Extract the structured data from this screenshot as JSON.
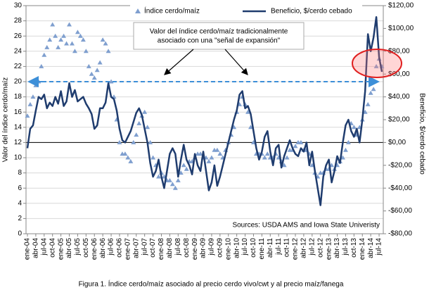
{
  "chart_data": {
    "type": "combo",
    "legend_position": "top",
    "ylabel": "Valor del índice cerdo/maíz",
    "y2label": "Beneficio, $/cerdo cebado",
    "annotation": [
      "Valor del índice cerdo/maíz tradicionalmente",
      "asociado con una \"señal de expansión\""
    ],
    "reference_line": 20,
    "source": "Sources: USDA AMS and Iowa State Univeristy",
    "caption": "Figura 1. Índice cerdo/maíz asociado al precio cerdo vivo/cwt y al precio maíz/fanega",
    "categories": [
      "ene-04",
      null,
      null,
      "abr-04",
      null,
      null,
      "jul-04",
      null,
      null,
      "oct-04",
      null,
      null,
      "ene-05",
      null,
      null,
      "abr-05",
      null,
      null,
      "jul-05",
      null,
      null,
      "oct-05",
      null,
      null,
      "ene-06",
      null,
      null,
      "abr-06",
      null,
      null,
      "jul-06",
      null,
      null,
      "oct-06",
      null,
      null,
      "ene-07",
      null,
      null,
      "abr-07",
      null,
      null,
      "jul-07",
      null,
      null,
      "oct-07",
      null,
      null,
      "ene-08",
      null,
      null,
      "abr-08",
      null,
      null,
      "jul-08",
      null,
      null,
      "oct-08",
      null,
      null,
      "ene-09",
      null,
      null,
      "abr-09",
      null,
      null,
      "jul-09",
      null,
      null,
      "oct-09",
      null,
      null,
      "ene-10",
      null,
      null,
      "abr-10",
      null,
      null,
      "jul-10",
      null,
      null,
      "oct-10",
      null,
      null,
      "ene-11",
      null,
      null,
      "abr-11",
      null,
      null,
      "jul-11",
      null,
      null,
      "oct-11",
      null,
      null,
      "ene-12",
      null,
      null,
      "abr-12",
      null,
      null,
      "jul-12",
      null,
      null,
      "oct-12",
      null,
      null,
      "ene-13",
      null,
      null,
      "abr-13",
      null,
      null,
      "jul-13",
      null,
      null,
      "oct-13",
      null,
      null,
      "ene-14",
      null,
      null,
      "abr-14",
      null,
      null,
      "jul-14",
      null
    ],
    "series": [
      {
        "name": "Índice cerdo/maíz",
        "kind": "scatter",
        "color": "#7f9fcf",
        "values": [
          15.5,
          17,
          18,
          19.5,
          20,
          22,
          23.5,
          24.5,
          25.5,
          27.5,
          26,
          24.5,
          25.5,
          26,
          25,
          27.5,
          25,
          24,
          26.5,
          26,
          25.5,
          24,
          22,
          21,
          20.5,
          21.5,
          22.5,
          25.5,
          25,
          24,
          20,
          18,
          15,
          12,
          10.5,
          10.5,
          10,
          9.5,
          12,
          13,
          14.5,
          15.5,
          16,
          14,
          12,
          10,
          9,
          7.5,
          8,
          7.5,
          7,
          7,
          6.5,
          6,
          7,
          8,
          9,
          8.5,
          9.5,
          9.5,
          10,
          10.5,
          10.5,
          10,
          10,
          9.5,
          10,
          11,
          11,
          10.5,
          10,
          11,
          12,
          13,
          14,
          16,
          17,
          18,
          17,
          16,
          14,
          12,
          10.5,
          10.5,
          10.5,
          10,
          10.5,
          10,
          10,
          10.5,
          10,
          9.5,
          9,
          10,
          11,
          11,
          11.5,
          12,
          12,
          11,
          11,
          10.5,
          9,
          8,
          7.5,
          8,
          8,
          8.5,
          8.5,
          9,
          8.5,
          9,
          9.5,
          10,
          11,
          12,
          14.5,
          14,
          13,
          14,
          15,
          16,
          17,
          18.5,
          19,
          22,
          23,
          22
        ]
      },
      {
        "name": "Beneficio, $/cerdo cebado",
        "kind": "line",
        "axis": "y2",
        "color": "#1f3c6e",
        "values": [
          -5,
          12,
          15,
          28,
          40,
          38,
          42,
          30,
          35,
          32,
          40,
          34,
          45,
          32,
          36,
          52,
          40,
          46,
          36,
          38,
          40,
          34,
          30,
          25,
          12,
          15,
          30,
          30,
          35,
          52,
          40,
          38,
          28,
          12,
          2,
          0,
          5,
          10,
          18,
          26,
          30,
          24,
          12,
          0,
          -18,
          -30,
          -25,
          -15,
          -30,
          -40,
          -25,
          -10,
          -5,
          -10,
          -30,
          -15,
          -2,
          -15,
          -20,
          -28,
          -10,
          -20,
          -25,
          -8,
          -25,
          -42,
          -35,
          -20,
          -38,
          -30,
          -20,
          -10,
          0,
          10,
          20,
          28,
          42,
          45,
          30,
          32,
          25,
          10,
          -5,
          -15,
          -8,
          5,
          10,
          -8,
          -20,
          -5,
          -2,
          -22,
          -12,
          -5,
          2,
          -5,
          -10,
          -12,
          -5,
          -8,
          0,
          -20,
          -8,
          -25,
          -40,
          -55,
          -30,
          -20,
          -15,
          -35,
          -25,
          -12,
          -18,
          0,
          15,
          20,
          10,
          5,
          12,
          0,
          20,
          45,
          95,
          80,
          92,
          110,
          75,
          62
        ]
      }
    ],
    "ylim": [
      0,
      30
    ],
    "yticks": [
      0,
      2,
      4,
      6,
      8,
      10,
      12,
      14,
      16,
      18,
      20,
      22,
      24,
      26,
      28,
      30
    ],
    "y2lim": [
      -80,
      120
    ],
    "y2ticks": [
      {
        "value": -80,
        "label": "-$80,00"
      },
      {
        "value": -60,
        "label": "-$60,00"
      },
      {
        "value": -40,
        "label": "-$40,00"
      },
      {
        "value": -20,
        "label": "-$20,00"
      },
      {
        "value": 0,
        "label": "$0,00"
      },
      {
        "value": 20,
        "label": "$20,00"
      },
      {
        "value": 40,
        "label": "$40,00"
      },
      {
        "value": 60,
        "label": "$60,00"
      },
      {
        "value": 80,
        "label": "$80,00"
      },
      {
        "value": 100,
        "label": "$100,00"
      },
      {
        "value": 120,
        "label": "$120,00"
      }
    ],
    "grid": true
  }
}
